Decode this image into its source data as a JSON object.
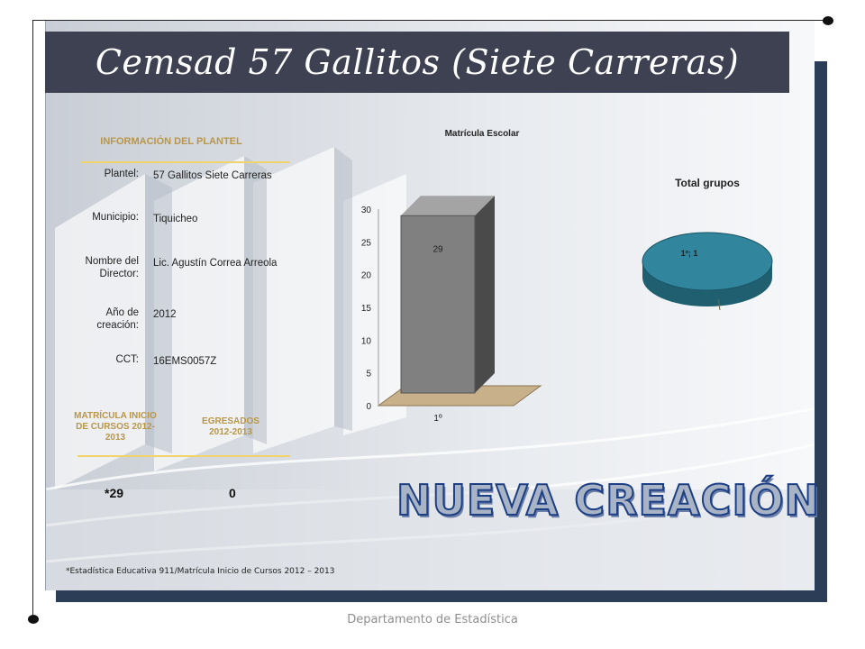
{
  "title": "Cemsad 57 Gallitos (Siete Carreras)",
  "info": {
    "heading": "INFORMACIÓN DEL PLANTEL",
    "rows": [
      {
        "label": "Plantel:",
        "value": "57 Gallitos Siete Carreras"
      },
      {
        "label": "Municipio:",
        "value": "Tiquicheo"
      },
      {
        "label": "Nombre del Director:",
        "value": "Lic. Agustín Correa Arreola"
      },
      {
        "label": "Año de creación:",
        "value": "2012"
      },
      {
        "label": "CCT:",
        "value": "16EMS0057Z"
      }
    ]
  },
  "stats": {
    "matricula_label": "MATRÍCULA INICIO DE CURSOS 2012-2013",
    "matricula_value": "*29",
    "egresados_label": "EGRESADOS 2012-2013",
    "egresados_value": "0"
  },
  "badge": "Nueva creación",
  "footnote": "*Estadística Educativa 911/Matrícula Inicio de Cursos 2012 – 2013",
  "department": "Departamento de Estadística",
  "colors": {
    "title_bar": "#3d4152",
    "heading_gold": "#b8964a",
    "bar_gray": "#808080",
    "pie_teal": "#31859c",
    "frame_navy": "#2b3d57"
  },
  "chart_data": [
    {
      "type": "bar",
      "title": "Matrícula Escolar",
      "categories": [
        "1º"
      ],
      "values": [
        29
      ],
      "data_labels": [
        "29"
      ],
      "yticks": [
        "0",
        "5",
        "10",
        "15",
        "20",
        "25",
        "30"
      ],
      "ylim": [
        0,
        30
      ],
      "style": "3d"
    },
    {
      "type": "pie",
      "title": "Total grupos",
      "labels": [
        "1º"
      ],
      "values": [
        1
      ],
      "data_labels": [
        "1º; 1"
      ],
      "style": "3d"
    }
  ]
}
